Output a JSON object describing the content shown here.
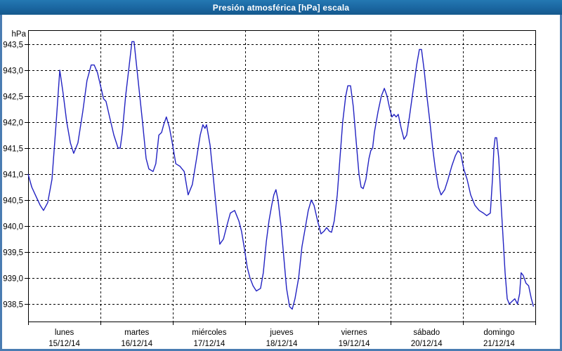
{
  "window": {
    "title": "Presión atmosférica [hPa] escala"
  },
  "colors": {
    "frame": "#4a7cb2",
    "titlebar_top": "#2478b3",
    "titlebar_bottom": "#15598c",
    "title_text": "#ffffff",
    "plot_background": "#ffffff",
    "grid": "#000000",
    "axis": "#000000",
    "series_line": "#2222c2"
  },
  "chart_data": {
    "type": "line",
    "title": "Presión atmosférica [hPa] escala",
    "ylabel": "hPa",
    "xlabel": "",
    "grid": {
      "horizontal": "dashed",
      "vertical": "dashed-at-day-boundaries"
    },
    "legend": "none",
    "ylim": [
      938.162,
      943.77
    ],
    "y_ticks": [
      {
        "v": 938.5,
        "label": "938,5"
      },
      {
        "v": 939.0,
        "label": "939,0"
      },
      {
        "v": 939.5,
        "label": "939,5"
      },
      {
        "v": 940.0,
        "label": "940,0"
      },
      {
        "v": 940.5,
        "label": "940,5"
      },
      {
        "v": 941.0,
        "label": "941,0"
      },
      {
        "v": 941.5,
        "label": "941,5"
      },
      {
        "v": 942.0,
        "label": "942,0"
      },
      {
        "v": 942.5,
        "label": "942,5"
      },
      {
        "v": 943.0,
        "label": "943,0"
      },
      {
        "v": 943.5,
        "label": "943,5"
      }
    ],
    "x_axis": {
      "unit": "hours",
      "range": [
        0,
        168
      ],
      "hours_per_day": 24,
      "days": [
        {
          "name": "lunes",
          "date": "15/12/14"
        },
        {
          "name": "martes",
          "date": "16/12/14"
        },
        {
          "name": "miércoles",
          "date": "17/12/14"
        },
        {
          "name": "jueves",
          "date": "18/12/14"
        },
        {
          "name": "viernes",
          "date": "19/12/14"
        },
        {
          "name": "sábado",
          "date": "20/12/14"
        },
        {
          "name": "domingo",
          "date": "21/12/14"
        }
      ]
    },
    "series": [
      {
        "name": "presión atmosférica",
        "color": "#2222c2",
        "points": [
          [
            0,
            941.0
          ],
          [
            1.2,
            940.75
          ],
          [
            2.8,
            940.55
          ],
          [
            4,
            940.4
          ],
          [
            5.1,
            940.3
          ],
          [
            6.5,
            940.45
          ],
          [
            7.9,
            940.9
          ],
          [
            9.3,
            942.0
          ],
          [
            10.5,
            943.0
          ],
          [
            11.6,
            942.55
          ],
          [
            12.8,
            942.0
          ],
          [
            14,
            941.6
          ],
          [
            15.1,
            941.4
          ],
          [
            16.5,
            941.6
          ],
          [
            18.1,
            942.2
          ],
          [
            19.5,
            942.8
          ],
          [
            20.9,
            943.1
          ],
          [
            21.9,
            943.1
          ],
          [
            23,
            942.95
          ],
          [
            24,
            942.7
          ],
          [
            25,
            942.45
          ],
          [
            25.8,
            942.4
          ],
          [
            27,
            942.1
          ],
          [
            28.4,
            941.75
          ],
          [
            29.8,
            941.5
          ],
          [
            30.5,
            941.5
          ],
          [
            31.2,
            941.8
          ],
          [
            32.3,
            942.5
          ],
          [
            33.5,
            943.1
          ],
          [
            34.4,
            943.55
          ],
          [
            35.1,
            943.55
          ],
          [
            36.1,
            943.0
          ],
          [
            37,
            942.5
          ],
          [
            37.9,
            942.0
          ],
          [
            39.1,
            941.3
          ],
          [
            40,
            941.1
          ],
          [
            41.4,
            941.05
          ],
          [
            42.3,
            941.2
          ],
          [
            43.3,
            941.75
          ],
          [
            44.2,
            941.8
          ],
          [
            44.9,
            941.95
          ],
          [
            45.8,
            942.1
          ],
          [
            46.8,
            941.9
          ],
          [
            47.9,
            941.55
          ],
          [
            48.9,
            941.2
          ],
          [
            50.3,
            941.15
          ],
          [
            51.7,
            941.05
          ],
          [
            53,
            940.6
          ],
          [
            54.4,
            940.8
          ],
          [
            55.8,
            941.3
          ],
          [
            57,
            941.75
          ],
          [
            57.9,
            941.95
          ],
          [
            58.6,
            941.88
          ],
          [
            59.1,
            941.95
          ],
          [
            60.3,
            941.55
          ],
          [
            61.4,
            940.9
          ],
          [
            62.4,
            940.3
          ],
          [
            63.5,
            939.65
          ],
          [
            64.7,
            939.75
          ],
          [
            65.8,
            940.0
          ],
          [
            67,
            940.25
          ],
          [
            68.4,
            940.3
          ],
          [
            69.8,
            940.1
          ],
          [
            70.7,
            939.9
          ],
          [
            71.7,
            939.55
          ],
          [
            72.6,
            939.2
          ],
          [
            73.5,
            939.0
          ],
          [
            74.5,
            938.85
          ],
          [
            75.6,
            938.75
          ],
          [
            77,
            938.8
          ],
          [
            77.9,
            939.1
          ],
          [
            78.9,
            939.7
          ],
          [
            79.8,
            940.1
          ],
          [
            80.7,
            940.4
          ],
          [
            81.4,
            940.6
          ],
          [
            82.1,
            940.7
          ],
          [
            82.8,
            940.5
          ],
          [
            83.8,
            940.0
          ],
          [
            84.7,
            939.4
          ],
          [
            85.6,
            938.8
          ],
          [
            86.6,
            938.45
          ],
          [
            87.5,
            938.4
          ],
          [
            88.4,
            938.6
          ],
          [
            89.6,
            939.0
          ],
          [
            90.7,
            939.6
          ],
          [
            91.9,
            940.0
          ],
          [
            92.8,
            940.3
          ],
          [
            93.8,
            940.5
          ],
          [
            94.7,
            940.4
          ],
          [
            95.9,
            940.1
          ],
          [
            97,
            939.85
          ],
          [
            98,
            939.9
          ],
          [
            98.9,
            939.97
          ],
          [
            99.8,
            939.9
          ],
          [
            100.5,
            939.88
          ],
          [
            101.4,
            940.1
          ],
          [
            102.4,
            940.6
          ],
          [
            103.3,
            941.3
          ],
          [
            104.2,
            942.0
          ],
          [
            105.2,
            942.5
          ],
          [
            105.9,
            942.7
          ],
          [
            106.8,
            942.7
          ],
          [
            107.7,
            942.3
          ],
          [
            108.7,
            941.6
          ],
          [
            109.6,
            941.0
          ],
          [
            110.3,
            940.75
          ],
          [
            111,
            940.72
          ],
          [
            111.9,
            940.9
          ],
          [
            112.9,
            941.3
          ],
          [
            113.5,
            941.45
          ],
          [
            114.1,
            941.5
          ],
          [
            114.7,
            941.8
          ],
          [
            115.9,
            942.2
          ],
          [
            117,
            942.5
          ],
          [
            118,
            942.65
          ],
          [
            118.9,
            942.5
          ],
          [
            119.8,
            942.25
          ],
          [
            120.5,
            942.1
          ],
          [
            121.2,
            942.15
          ],
          [
            121.9,
            942.1
          ],
          [
            122.6,
            942.15
          ],
          [
            123.5,
            941.9
          ],
          [
            124.5,
            941.67
          ],
          [
            125.4,
            941.75
          ],
          [
            126.3,
            942.1
          ],
          [
            127.5,
            942.6
          ],
          [
            128.7,
            943.1
          ],
          [
            129.6,
            943.4
          ],
          [
            130.3,
            943.4
          ],
          [
            131.2,
            943.0
          ],
          [
            132.1,
            942.5
          ],
          [
            133.1,
            942.0
          ],
          [
            134,
            941.5
          ],
          [
            134.9,
            941.1
          ],
          [
            135.9,
            940.75
          ],
          [
            136.8,
            940.6
          ],
          [
            138,
            940.7
          ],
          [
            139.1,
            940.9
          ],
          [
            140.3,
            941.15
          ],
          [
            141.5,
            941.35
          ],
          [
            142.4,
            941.45
          ],
          [
            143.3,
            941.4
          ],
          [
            144.3,
            941.1
          ],
          [
            145.4,
            940.9
          ],
          [
            146.6,
            940.6
          ],
          [
            148,
            940.4
          ],
          [
            149.4,
            940.3
          ],
          [
            150.8,
            940.25
          ],
          [
            151.9,
            940.2
          ],
          [
            153.1,
            940.25
          ],
          [
            153.8,
            940.9
          ],
          [
            154.3,
            941.5
          ],
          [
            154.7,
            941.7
          ],
          [
            155.2,
            941.7
          ],
          [
            155.9,
            941.3
          ],
          [
            156.6,
            940.5
          ],
          [
            157.3,
            939.8
          ],
          [
            158,
            939.1
          ],
          [
            158.7,
            938.6
          ],
          [
            159.4,
            938.5
          ],
          [
            160.3,
            938.55
          ],
          [
            161.2,
            938.6
          ],
          [
            162.1,
            938.5
          ],
          [
            162.8,
            938.7
          ],
          [
            163.3,
            939.1
          ],
          [
            164,
            939.05
          ],
          [
            164.9,
            938.9
          ],
          [
            165.8,
            938.85
          ],
          [
            166.7,
            938.6
          ],
          [
            167.4,
            938.45
          ]
        ]
      }
    ]
  }
}
